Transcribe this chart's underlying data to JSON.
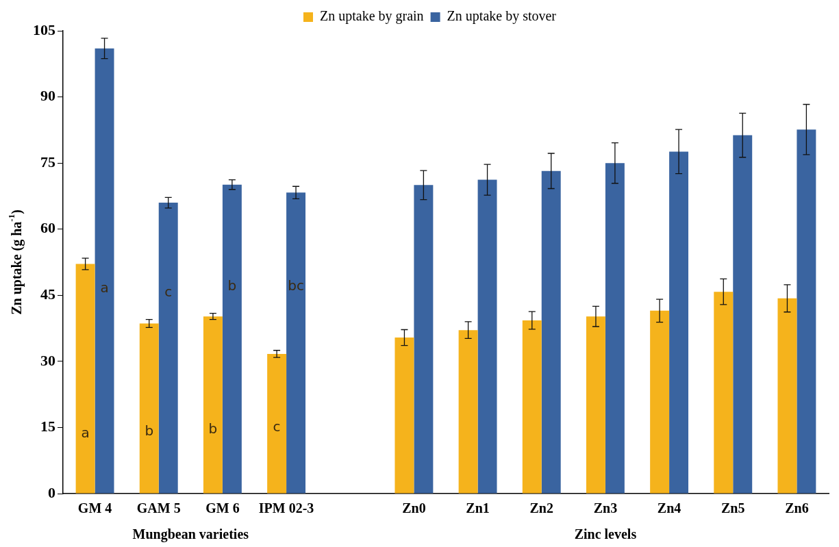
{
  "chart_data": {
    "type": "bar",
    "ylabel": "Zn uptake (g ha$^{-1}$)",
    "categories": [
      "GM 4",
      "GAM 5",
      "GM 6",
      "IPM 02-3",
      null,
      "Zn0",
      "Zn1",
      "Zn2",
      "Zn3",
      "Zn4",
      "Zn5",
      "Zn6"
    ],
    "series": [
      {
        "name": "Zn uptake by grain",
        "color": "#f5b31c",
        "values": [
          52.1,
          38.6,
          40.2,
          31.7,
          null,
          35.4,
          37.1,
          39.3,
          40.2,
          41.5,
          45.8,
          44.3
        ],
        "errors": [
          1.3,
          0.9,
          0.7,
          0.8,
          null,
          1.8,
          1.9,
          2,
          2.3,
          2.6,
          2.9,
          3.1
        ]
      },
      {
        "name": "Zn uptake by stover",
        "color": "#3a64a0",
        "values": [
          101,
          66,
          70.1,
          68.3,
          null,
          70,
          71.2,
          73.2,
          75,
          77.6,
          81.3,
          82.6
        ],
        "errors": [
          2.3,
          1.2,
          1.1,
          1.4,
          null,
          3.3,
          3.5,
          4,
          4.6,
          5,
          5,
          5.7
        ]
      }
    ],
    "ylim": [
      0,
      105
    ],
    "yticks": [
      0,
      15,
      30,
      45,
      60,
      75,
      90,
      105
    ],
    "grid": false,
    "legend": "top",
    "annotations": [
      "Mungbean varieties",
      "Zinc levels",
      {
        "text": "a",
        "x": "GM 4",
        "y": 13.5
      },
      {
        "text": "b",
        "x": "GAM 5",
        "y": 14
      },
      {
        "text": "b",
        "x": "GM 6",
        "y": 14.5
      },
      {
        "text": "c",
        "x": "IPM 02-3",
        "y": 15
      },
      {
        "text": "a",
        "x": "GM 4",
        "y": 46.5
      },
      {
        "text": "c",
        "x": "GAM 5",
        "y": 45.5
      },
      {
        "text": "b",
        "x": "GM 6",
        "y": 47
      },
      {
        "text": "bc",
        "x": "IPM 02-3",
        "y": 47
      }
    ]
  }
}
